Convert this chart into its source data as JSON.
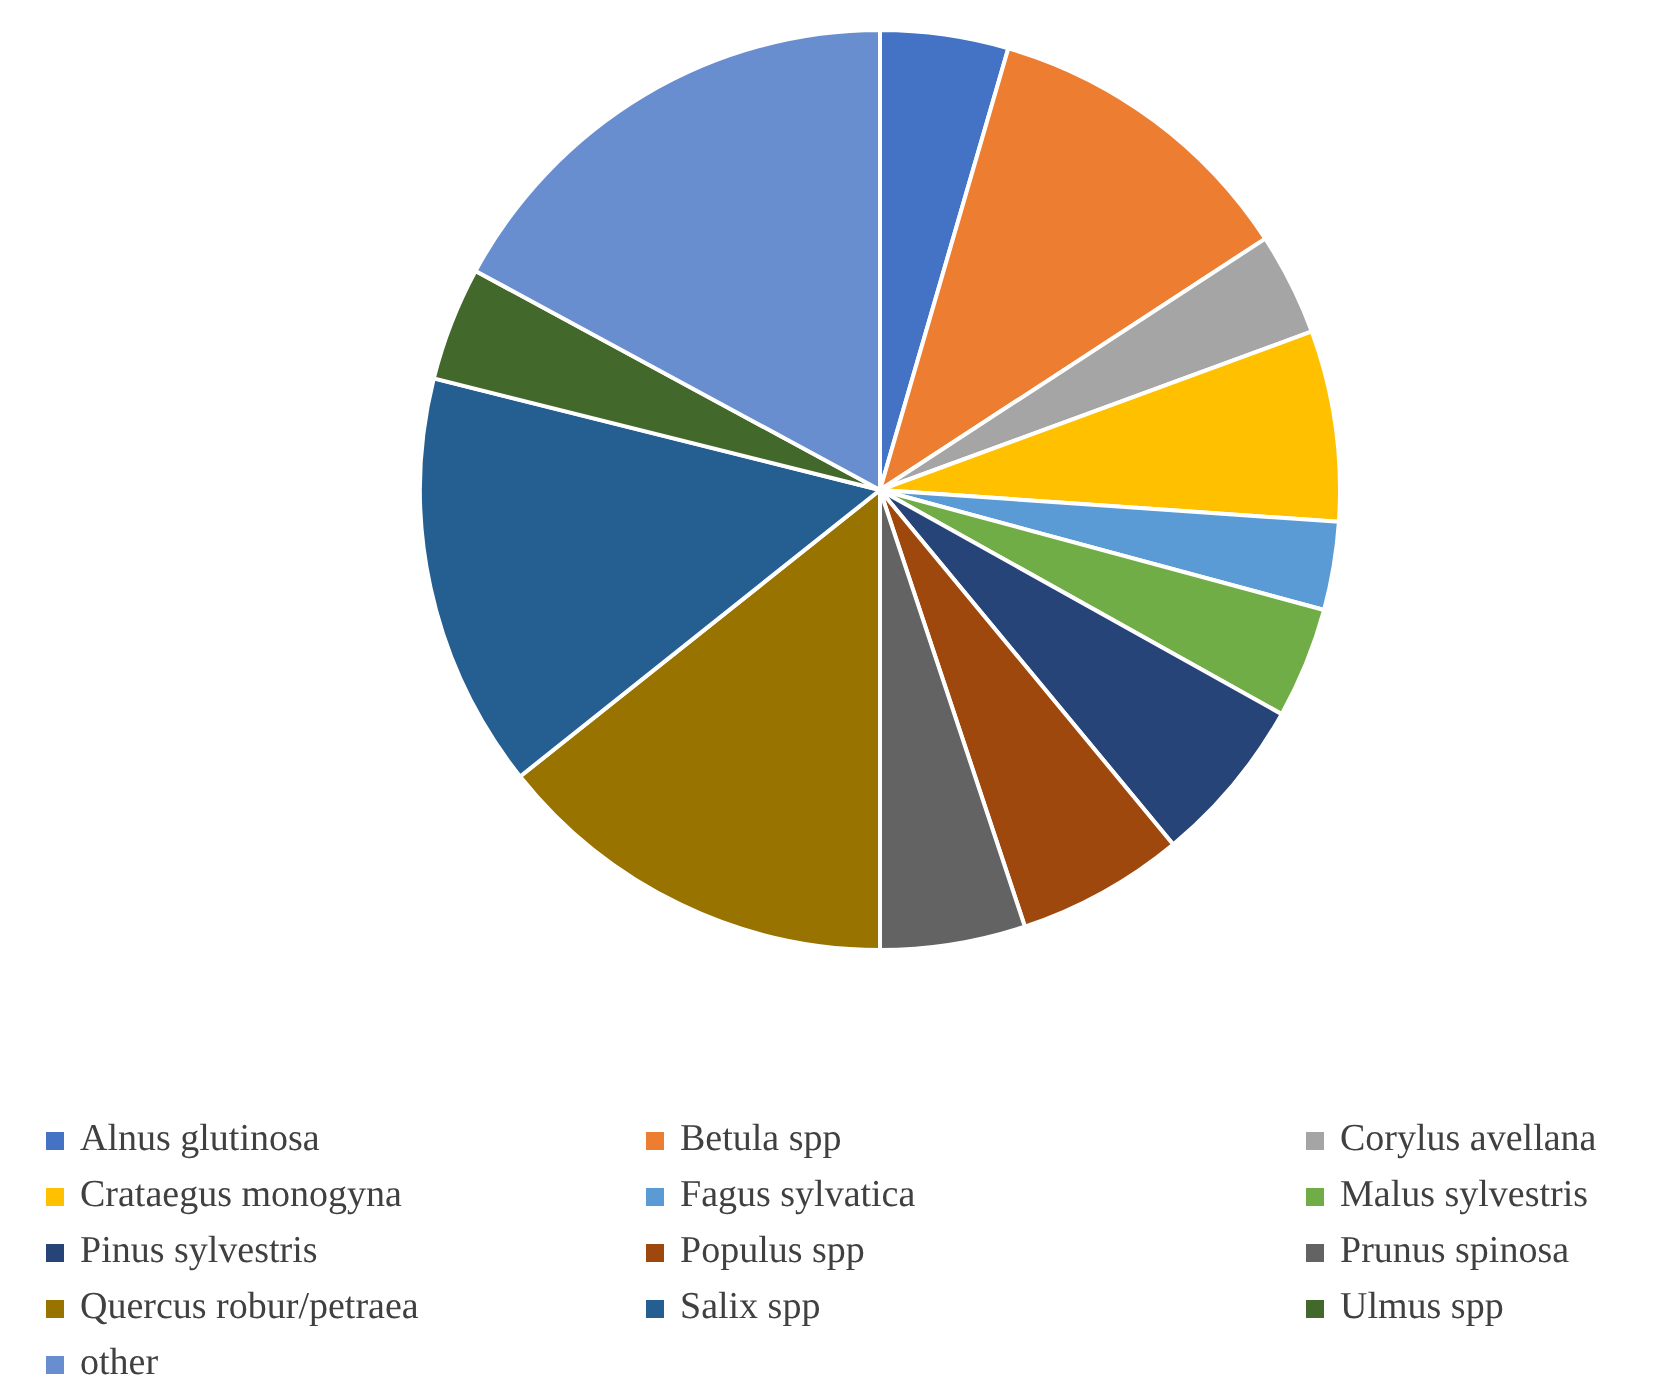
{
  "chart_data": {
    "type": "pie",
    "categories": [
      "Alnus glutinosa",
      "Betula spp",
      "Corylus avellana",
      "Crataegus monogyna",
      "Fagus sylvatica",
      "Malus sylvestris",
      "Pinus sylvestris",
      "Populus spp",
      "Prunus spinosa",
      "Quercus robur/petraea",
      "Salix spp",
      "Ulmus spp",
      "other"
    ],
    "values": [
      4.5,
      11.3,
      3.6,
      6.7,
      3.1,
      3.9,
      5.9,
      5.9,
      5.1,
      14.3,
      14.6,
      4.0,
      17.1
    ],
    "colors": [
      "#4472c4",
      "#ed7d31",
      "#a5a5a5",
      "#ffc000",
      "#5b9bd5",
      "#70ad47",
      "#264478",
      "#9e480e",
      "#636363",
      "#997300",
      "#255e91",
      "#43682b",
      "#698ed0"
    ],
    "legend": "bottom"
  }
}
